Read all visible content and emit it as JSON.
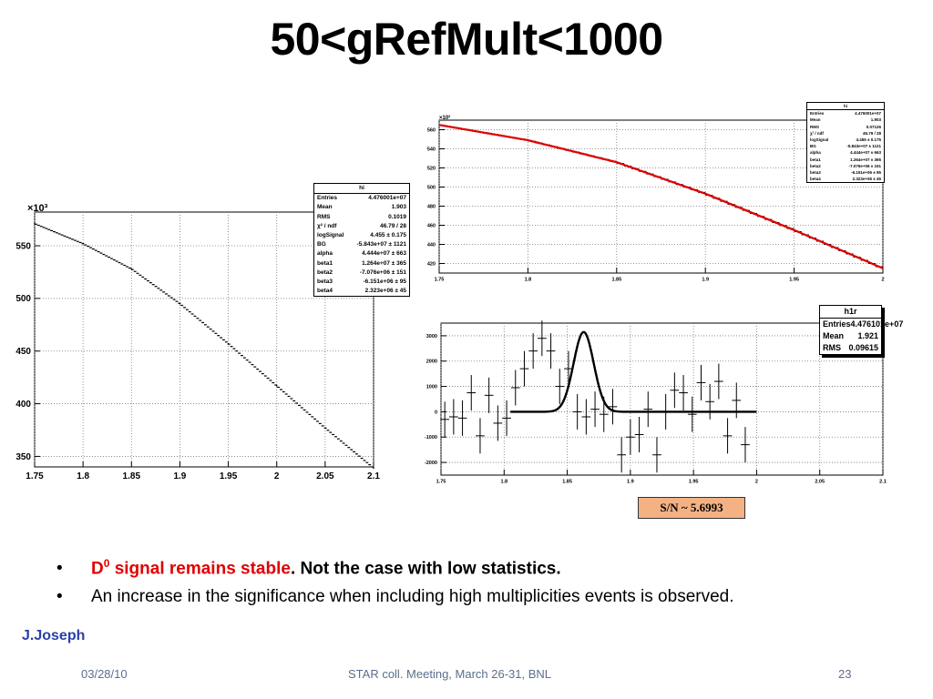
{
  "slide": {
    "title": "50<gRefMult<1000",
    "sn_label": "S/N ~ 5.6993",
    "bullet1_red_prefix": "D",
    "bullet1_red_sup": "0",
    "bullet1_red_rest": " signal remains stable",
    "bullet1_rest": ". Not the case with low statistics.",
    "bullet2": "An increase in the significance when including high multiplicities events is observed.",
    "author": "J.Joseph",
    "footer_date": "03/28/10",
    "footer_center": "STAR coll. Meeting, March 26-31, BNL",
    "footer_page": "23"
  },
  "stats": {
    "left": {
      "title": "hi",
      "rows": [
        {
          "k": "Entries",
          "v": "4.476001e+07"
        },
        {
          "k": "Mean",
          "v": "1.903"
        },
        {
          "k": "RMS",
          "v": "0.1019"
        },
        {
          "k": "χ² / ndf",
          "v": "46.79 / 28"
        },
        {
          "k": "logSignal",
          "v": "4.455 ± 0.175"
        },
        {
          "k": "BG",
          "v": "-5.843e+07 ± 1121"
        },
        {
          "k": "alpha",
          "v": "4.444e+07 ± 663"
        },
        {
          "k": "beta1",
          "v": "1.264e+07 ± 365"
        },
        {
          "k": "beta2",
          "v": "-7.076e+06 ± 151"
        },
        {
          "k": "beta3",
          "v": "-6.151e+06 ± 95"
        },
        {
          "k": "beta4",
          "v": "2.323e+06 ± 45"
        }
      ]
    },
    "topright": {
      "title": "hi",
      "rows": [
        {
          "k": "Entries",
          "v": "4.476001e+07"
        },
        {
          "k": "Mean",
          "v": "1.903"
        },
        {
          "k": "RMS",
          "v": "0.07126"
        },
        {
          "k": "χ² / ndf",
          "v": "46.79 / 28"
        },
        {
          "k": "logSignal",
          "v": "4.455 ± 0.175"
        },
        {
          "k": "BG",
          "v": "-5.843e+07 ± 1121"
        },
        {
          "k": "alpha",
          "v": "4.444e+07 ± 663"
        },
        {
          "k": "beta1",
          "v": "1.264e+07 ± 365"
        },
        {
          "k": "beta2",
          "v": "-7.076e+06 ± 151"
        },
        {
          "k": "beta3",
          "v": "-6.151e+06 ± 95"
        },
        {
          "k": "beta4",
          "v": "2.323e+06 ± 45"
        }
      ]
    },
    "residual": {
      "title": "h1r",
      "rows": [
        {
          "k": "Entries",
          "v": "4.476101e+07"
        },
        {
          "k": "Mean",
          "v": "1.921"
        },
        {
          "k": "RMS",
          "v": "0.09615"
        }
      ]
    }
  },
  "chart_data": [
    {
      "type": "line",
      "name": "full-range invariant mass histogram",
      "exponent_label": "×10³",
      "xlim": [
        1.75,
        2.1
      ],
      "ylim": [
        340,
        582
      ],
      "xticks": [
        "1.75",
        "1.8",
        "1.85",
        "1.9",
        "1.95",
        "2",
        "2.05",
        "2.1"
      ],
      "yticks": [
        "350",
        "400",
        "450",
        "500",
        "550"
      ],
      "grid": true,
      "x": [
        1.75,
        1.8,
        1.85,
        1.9,
        1.95,
        2.0,
        2.05,
        2.1
      ],
      "y": [
        571,
        552,
        528,
        495,
        457,
        417,
        377,
        339
      ]
    },
    {
      "type": "line",
      "name": "zoomed histogram with fit",
      "exponent_label": "×10³",
      "xlim": [
        1.75,
        2.0
      ],
      "ylim": [
        410,
        570
      ],
      "xticks": [
        "1.75",
        "1.8",
        "1.85",
        "1.9",
        "1.95",
        "2"
      ],
      "yticks": [
        "420",
        "440",
        "460",
        "480",
        "500",
        "520",
        "540",
        "560"
      ],
      "grid": true,
      "fit_color": "#e00000",
      "x": [
        1.75,
        1.8,
        1.85,
        1.9,
        1.95,
        2.0
      ],
      "y": [
        565,
        549,
        526,
        493,
        455,
        415
      ]
    },
    {
      "type": "scatter",
      "name": "background-subtracted residual",
      "xlim": [
        1.75,
        2.1
      ],
      "ylim": [
        -2500,
        3500
      ],
      "xticks": [
        "1.75",
        "1.8",
        "1.85",
        "1.9",
        "1.95",
        "2",
        "2.05",
        "2.1"
      ],
      "yticks": [
        "-2000",
        "-1000",
        "0",
        "1000",
        "2000",
        "3000"
      ],
      "grid": true,
      "gauss_peak": {
        "mean": 1.863,
        "sigma": 0.008,
        "amplitude": 3150
      },
      "points": [
        {
          "x": 1.753,
          "y": -300,
          "e": 700
        },
        {
          "x": 1.76,
          "y": -200,
          "e": 700
        },
        {
          "x": 1.767,
          "y": -250,
          "e": 700
        },
        {
          "x": 1.774,
          "y": 750,
          "e": 700
        },
        {
          "x": 1.781,
          "y": -950,
          "e": 700
        },
        {
          "x": 1.788,
          "y": 650,
          "e": 700
        },
        {
          "x": 1.795,
          "y": -450,
          "e": 700
        },
        {
          "x": 1.802,
          "y": -250,
          "e": 700
        },
        {
          "x": 1.809,
          "y": 950,
          "e": 700
        },
        {
          "x": 1.816,
          "y": 1700,
          "e": 700
        },
        {
          "x": 1.823,
          "y": 2400,
          "e": 700
        },
        {
          "x": 1.83,
          "y": 2900,
          "e": 700
        },
        {
          "x": 1.837,
          "y": 2400,
          "e": 700
        },
        {
          "x": 1.844,
          "y": 1000,
          "e": 700
        },
        {
          "x": 1.851,
          "y": 1700,
          "e": 700
        },
        {
          "x": 1.858,
          "y": 0,
          "e": 700
        },
        {
          "x": 1.865,
          "y": -200,
          "e": 700
        },
        {
          "x": 1.872,
          "y": 100,
          "e": 700
        },
        {
          "x": 1.879,
          "y": -100,
          "e": 700
        },
        {
          "x": 1.886,
          "y": 200,
          "e": 700
        },
        {
          "x": 1.893,
          "y": -1700,
          "e": 700
        },
        {
          "x": 1.9,
          "y": -1000,
          "e": 700
        },
        {
          "x": 1.907,
          "y": -900,
          "e": 700
        },
        {
          "x": 1.914,
          "y": 100,
          "e": 700
        },
        {
          "x": 1.921,
          "y": -1700,
          "e": 700
        },
        {
          "x": 1.928,
          "y": 0,
          "e": 700
        },
        {
          "x": 1.935,
          "y": 850,
          "e": 700
        },
        {
          "x": 1.942,
          "y": 750,
          "e": 700
        },
        {
          "x": 1.949,
          "y": -100,
          "e": 700
        },
        {
          "x": 1.956,
          "y": 1150,
          "e": 700
        },
        {
          "x": 1.963,
          "y": 400,
          "e": 700
        },
        {
          "x": 1.97,
          "y": 1200,
          "e": 700
        },
        {
          "x": 1.977,
          "y": -950,
          "e": 700
        },
        {
          "x": 1.984,
          "y": 450,
          "e": 700
        },
        {
          "x": 1.991,
          "y": -1300,
          "e": 700
        }
      ]
    }
  ]
}
